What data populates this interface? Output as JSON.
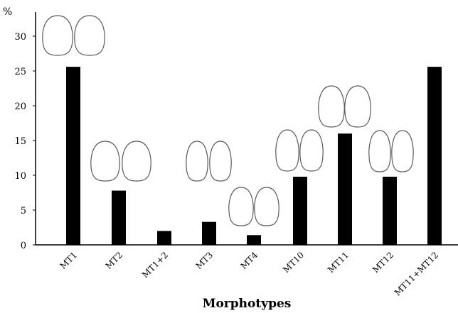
{
  "chart_data": {
    "type": "bar",
    "categories": [
      "MT1",
      "MT2",
      "MT1+2",
      "MT3",
      "MT4",
      "MT10",
      "MT11",
      "MT12",
      "MT11+MT12"
    ],
    "values": [
      25.6,
      7.8,
      2.0,
      3.3,
      1.4,
      9.8,
      16.0,
      9.8,
      25.6
    ],
    "title": "",
    "xlabel": "Morphotypes",
    "ylabel": "%",
    "ylim": [
      0,
      32
    ],
    "yticks": [
      0,
      5,
      10,
      15,
      20,
      25,
      30
    ],
    "grid": false,
    "legend": "none",
    "bar_color": "#000000",
    "annotations": "pair of seed-outline drawings above bars MT1, MT2, MT3, MT4, MT10, MT11, MT12"
  }
}
